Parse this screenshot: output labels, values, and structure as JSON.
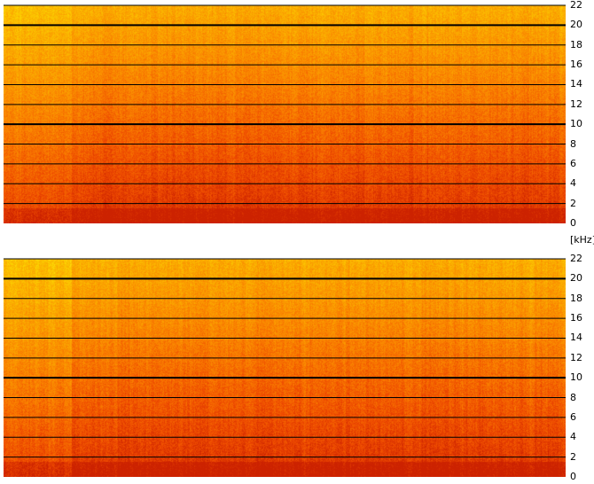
{
  "chart_data": [
    {
      "type": "heatmap",
      "description_source": "spectrogram",
      "channel": "top",
      "y_unit": "[kHz]",
      "ylim": [
        0,
        22
      ],
      "y_ticks": [
        0,
        2,
        4,
        6,
        8,
        10,
        12,
        14,
        16,
        18,
        20,
        22
      ],
      "y_tick_labels": [
        "0",
        "2",
        "4",
        "6",
        "8",
        "10",
        "12",
        "14",
        "16",
        "18",
        "20",
        "22"
      ],
      "grid": true,
      "emphasized_gridlines": [
        10,
        20
      ],
      "colormap": [
        "#cc2200",
        "#ee4a00",
        "#f97b00",
        "#fba700",
        "#fcd200",
        "#ffff40"
      ],
      "quiet_intro_fraction": 0.12
    },
    {
      "type": "heatmap",
      "description_source": "spectrogram",
      "channel": "bottom",
      "ylim": [
        0,
        22
      ],
      "y_ticks": [
        0,
        2,
        4,
        6,
        8,
        10,
        12,
        14,
        16,
        18,
        20,
        22
      ],
      "y_tick_labels": [
        "0",
        "2",
        "4",
        "6",
        "8",
        "10",
        "12",
        "14",
        "16",
        "18",
        "20",
        "22"
      ],
      "grid": true,
      "emphasized_gridlines": [
        10,
        20
      ],
      "colormap": [
        "#cc2200",
        "#ee4a00",
        "#f97b00",
        "#fba700",
        "#fcd200",
        "#ffff40"
      ],
      "quiet_intro_fraction": 0.12
    }
  ]
}
